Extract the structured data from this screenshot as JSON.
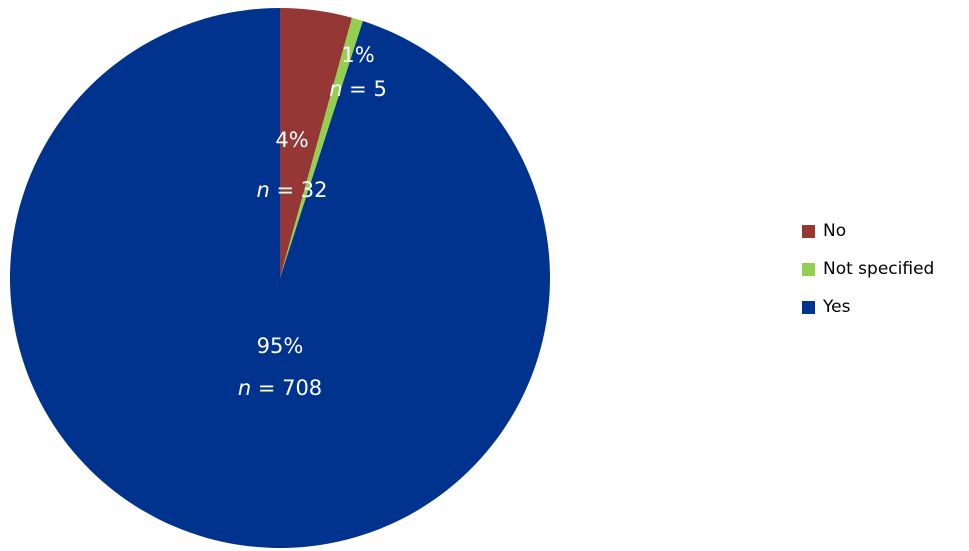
{
  "chart_data": {
    "type": "pie",
    "slices": [
      {
        "name": "No",
        "percent_label": "4%",
        "n_label": "n",
        "n_value": "= 32",
        "value": 32,
        "color": "#953735"
      },
      {
        "name": "Not specified",
        "percent_label": "1%",
        "n_label": "n",
        "n_value": "= 5",
        "value": 5,
        "color": "#92d050"
      },
      {
        "name": "Yes",
        "percent_label": "95%",
        "n_label": "n",
        "n_value": "= 708",
        "value": 708,
        "color": "#00338d"
      }
    ],
    "start_angle": "12 o'clock",
    "direction": "clockwise",
    "legend_position": "right"
  }
}
